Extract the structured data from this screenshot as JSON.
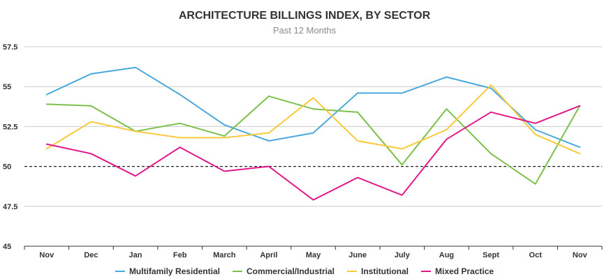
{
  "chart_data": {
    "type": "line",
    "title": "ARCHITECTURE BILLINGS INDEX, BY SECTOR",
    "subtitle": "Past 12 Months",
    "xlabel": "",
    "ylabel": "",
    "categories": [
      "Nov",
      "Dec",
      "Jan",
      "Feb",
      "March",
      "April",
      "May",
      "June",
      "July",
      "Aug",
      "Sept",
      "Oct",
      "Nov"
    ],
    "ylim": [
      45,
      57.5
    ],
    "yticks": [
      45,
      47.5,
      50,
      52.5,
      55,
      57.5
    ],
    "ytick_labels": [
      "45",
      "47.5",
      "50",
      "52.5",
      "55",
      "57.5"
    ],
    "reference_line": 50,
    "grid": true,
    "legend_position": "bottom",
    "series": [
      {
        "name": "Multifamily Residential",
        "color": "#4aa9dc",
        "values": [
          54.5,
          55.8,
          56.2,
          54.5,
          52.6,
          51.6,
          52.1,
          54.6,
          54.6,
          55.6,
          54.9,
          52.3,
          51.2
        ]
      },
      {
        "name": "Commercial/Industrial",
        "color": "#7cc04b",
        "values": [
          53.9,
          53.8,
          52.2,
          52.7,
          51.9,
          54.4,
          53.6,
          53.4,
          50.1,
          53.6,
          50.8,
          48.9,
          53.8
        ]
      },
      {
        "name": "Institutional",
        "color": "#f9c93c",
        "values": [
          51.1,
          52.8,
          52.2,
          51.8,
          51.8,
          52.1,
          54.3,
          51.6,
          51.1,
          52.3,
          55.1,
          52.0,
          50.8
        ]
      },
      {
        "name": "Mixed Practice",
        "color": "#e0198a",
        "values": [
          51.4,
          50.8,
          49.4,
          51.2,
          49.7,
          50.0,
          47.9,
          49.3,
          48.2,
          51.7,
          53.4,
          52.7,
          53.8
        ]
      }
    ]
  }
}
